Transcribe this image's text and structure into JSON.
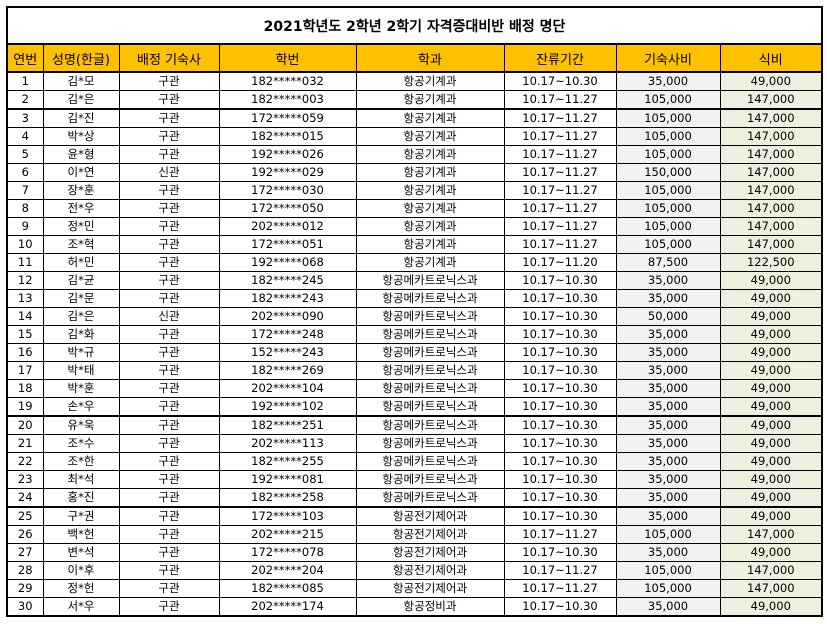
{
  "title": "2021학년도 2학년 2학기 자격증대비반 배정 명단",
  "headers": [
    "연번",
    "성명(한글)",
    "배정 기숙사",
    "학번",
    "학과",
    "잔류기간",
    "기숙사비",
    "식비"
  ],
  "rows": [
    [
      "1",
      "김*모",
      "구관",
      "182*****032",
      "항공기계과",
      "10.17~10.30",
      "35,000",
      "49,000"
    ],
    [
      "2",
      "김*은",
      "구관",
      "182*****003",
      "항공기계과",
      "10.17~11.27",
      "105,000",
      "147,000"
    ],
    [
      "3",
      "김*진",
      "구관",
      "172*****059",
      "항공기계과",
      "10.17~11.27",
      "105,000",
      "147,000"
    ],
    [
      "4",
      "박*상",
      "구관",
      "182*****015",
      "항공기계과",
      "10.17~11.27",
      "105,000",
      "147,000"
    ],
    [
      "5",
      "윤*형",
      "구관",
      "192*****026",
      "항공기계과",
      "10.17~11.27",
      "105,000",
      "147,000"
    ],
    [
      "6",
      "이*연",
      "신관",
      "192*****029",
      "항공기계과",
      "10.17~11.27",
      "150,000",
      "147,000"
    ],
    [
      "7",
      "장*훈",
      "구관",
      "172*****030",
      "항공기계과",
      "10.17~11.27",
      "105,000",
      "147,000"
    ],
    [
      "8",
      "전*우",
      "구관",
      "172*****050",
      "항공기계과",
      "10.17~11.27",
      "105,000",
      "147,000"
    ],
    [
      "9",
      "정*민",
      "구관",
      "202*****012",
      "항공기계과",
      "10.17~11.27",
      "105,000",
      "147,000"
    ],
    [
      "10",
      "조*혁",
      "구관",
      "172*****051",
      "항공기계과",
      "10.17~11.27",
      "105,000",
      "147,000"
    ],
    [
      "11",
      "허*민",
      "구관",
      "192*****068",
      "항공기계과",
      "10.17~11.20",
      "87,500",
      "122,500"
    ],
    [
      "12",
      "김*균",
      "구관",
      "182*****245",
      "항공메카트로닉스과",
      "10.17~10.30",
      "35,000",
      "49,000"
    ],
    [
      "13",
      "김*문",
      "구관",
      "182*****243",
      "항공메카트로닉스과",
      "10.17~10.30",
      "35,000",
      "49,000"
    ],
    [
      "14",
      "김*은",
      "신관",
      "202*****090",
      "항공메카트로닉스과",
      "10.17~10.30",
      "50,000",
      "49,000"
    ],
    [
      "15",
      "김*화",
      "구관",
      "172*****248",
      "항공메카트로닉스과",
      "10.17~10.30",
      "35,000",
      "49,000"
    ],
    [
      "16",
      "박*규",
      "구관",
      "152*****243",
      "항공메카트로닉스과",
      "10.17~10.30",
      "35,000",
      "49,000"
    ],
    [
      "17",
      "박*태",
      "구관",
      "182*****269",
      "항공메카트로닉스과",
      "10.17~10.30",
      "35,000",
      "49,000"
    ],
    [
      "18",
      "박*훈",
      "구관",
      "202*****104",
      "항공메카트로닉스과",
      "10.17~10.30",
      "35,000",
      "49,000"
    ],
    [
      "19",
      "손*우",
      "구관",
      "192*****102",
      "항공메카트로닉스과",
      "10.17~10.30",
      "35,000",
      "49,000"
    ],
    [
      "20",
      "유*욱",
      "구관",
      "182*****251",
      "항공메카트로닉스과",
      "10.17~10.30",
      "35,000",
      "49,000"
    ],
    [
      "21",
      "조*수",
      "구관",
      "202*****113",
      "항공메카트로닉스과",
      "10.17~10.30",
      "35,000",
      "49,000"
    ],
    [
      "22",
      "조*한",
      "구관",
      "182*****255",
      "항공메카트로닉스과",
      "10.17~10.30",
      "35,000",
      "49,000"
    ],
    [
      "23",
      "최*석",
      "구관",
      "192*****081",
      "항공메카트로닉스과",
      "10.17~10.30",
      "35,000",
      "49,000"
    ],
    [
      "24",
      "홍*진",
      "구관",
      "182*****258",
      "항공메카트로닉스과",
      "10.17~10.30",
      "35,000",
      "49,000"
    ],
    [
      "25",
      "구*권",
      "구관",
      "172*****103",
      "항공전기제어과",
      "10.17~10.30",
      "35,000",
      "49,000"
    ],
    [
      "26",
      "백*헌",
      "구관",
      "202*****215",
      "항공전기제어과",
      "10.17~11.27",
      "105,000",
      "147,000"
    ],
    [
      "27",
      "변*석",
      "구관",
      "172*****078",
      "항공전기제어과",
      "10.17~10.30",
      "35,000",
      "49,000"
    ],
    [
      "28",
      "이*후",
      "구관",
      "202*****204",
      "항공전기제어과",
      "10.17~11.27",
      "105,000",
      "147,000"
    ],
    [
      "29",
      "정*헌",
      "구관",
      "182*****085",
      "항공전기제어과",
      "10.17~11.27",
      "105,000",
      "147,000"
    ],
    [
      "30",
      "서*우",
      "구관",
      "202*****174",
      "항공정비과",
      "10.17~10.30",
      "35,000",
      "49,000"
    ]
  ],
  "colors": {
    "header_bg": "#ffc000",
    "fee_bg": "#f2f2f2",
    "meal_bg": "#ebf1de"
  }
}
